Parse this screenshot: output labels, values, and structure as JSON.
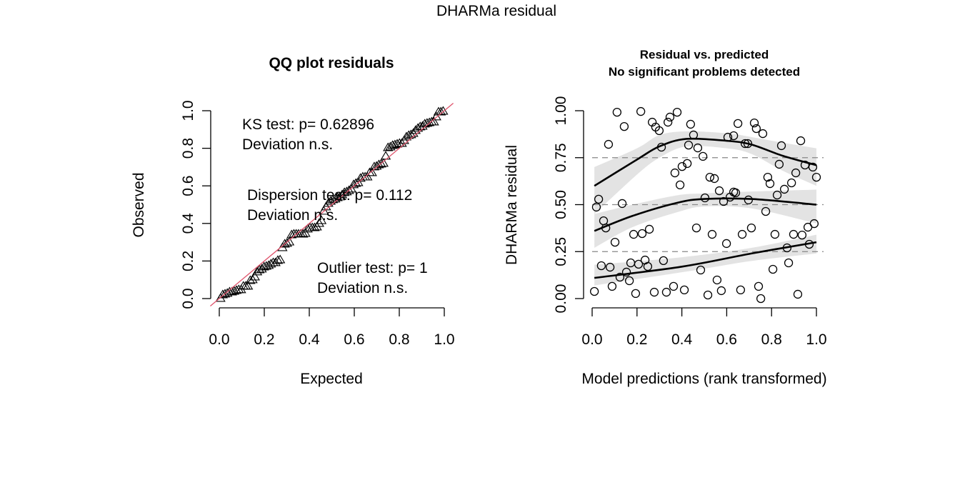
{
  "page_title": "DHARMa residual",
  "chart_data": [
    {
      "type": "scatter",
      "subtype": "qq-uniform",
      "title": "QQ plot residuals",
      "xlabel": "Expected",
      "ylabel": "Observed",
      "xlim": [
        0,
        1
      ],
      "ylim": [
        0,
        1
      ],
      "xticks": [
        "0.0",
        "0.2",
        "0.4",
        "0.6",
        "0.8",
        "1.0"
      ],
      "yticks": [
        "0.0",
        "0.2",
        "0.4",
        "0.6",
        "0.8",
        "1.0"
      ],
      "marker": "triangle-open",
      "reference_line": {
        "from": [
          0,
          0
        ],
        "to": [
          1,
          1
        ],
        "color": "#df536b"
      },
      "annotations": [
        {
          "line1": "KS test: p= 0.62896",
          "line2": "Deviation  n.s."
        },
        {
          "line1": "Dispersion test: p= 0.112",
          "line2": "Deviation  n.s."
        },
        {
          "line1": "Outlier test: p= 1",
          "line2": "Deviation  n.s."
        }
      ],
      "observed_source": "residuals of second panel (sorted)"
    },
    {
      "type": "scatter",
      "title": "Residual vs. predicted",
      "subtitle": "No significant problems detected",
      "xlabel": "Model predictions (rank transformed)",
      "ylabel": "DHARMa residual",
      "xlim": [
        0,
        1
      ],
      "ylim": [
        0,
        1
      ],
      "xticks": [
        "0.0",
        "0.2",
        "0.4",
        "0.6",
        "0.8",
        "1.0"
      ],
      "yticks": [
        "0.00",
        "0.25",
        "0.50",
        "0.75",
        "1.00"
      ],
      "hlines": [
        0.25,
        0.5,
        0.75
      ],
      "marker": "circle-open",
      "points": [
        [
          0.111,
          0.992
        ],
        [
          0.217,
          0.996
        ],
        [
          0.143,
          0.916
        ],
        [
          0.073,
          0.821
        ],
        [
          0.268,
          0.939
        ],
        [
          0.283,
          0.913
        ],
        [
          0.299,
          0.894
        ],
        [
          0.309,
          0.806
        ],
        [
          0.379,
          0.992
        ],
        [
          0.347,
          0.966
        ],
        [
          0.338,
          0.939
        ],
        [
          0.439,
          0.928
        ],
        [
          0.452,
          0.871
        ],
        [
          0.43,
          0.817
        ],
        [
          0.471,
          0.802
        ],
        [
          0.494,
          0.757
        ],
        [
          0.65,
          0.932
        ],
        [
          0.723,
          0.935
        ],
        [
          0.732,
          0.905
        ],
        [
          0.761,
          0.878
        ],
        [
          0.631,
          0.867
        ],
        [
          0.605,
          0.859
        ],
        [
          0.682,
          0.825
        ],
        [
          0.694,
          0.825
        ],
        [
          0.844,
          0.814
        ],
        [
          0.93,
          0.84
        ],
        [
          0.424,
          0.719
        ],
        [
          0.401,
          0.703
        ],
        [
          0.369,
          0.669
        ],
        [
          0.392,
          0.605
        ],
        [
          0.525,
          0.646
        ],
        [
          0.545,
          0.639
        ],
        [
          0.567,
          0.574
        ],
        [
          0.834,
          0.715
        ],
        [
          0.949,
          0.711
        ],
        [
          0.984,
          0.7
        ],
        [
          1.0,
          0.646
        ],
        [
          0.908,
          0.669
        ],
        [
          0.783,
          0.646
        ],
        [
          0.793,
          0.612
        ],
        [
          0.889,
          0.616
        ],
        [
          0.857,
          0.582
        ],
        [
          0.825,
          0.551
        ],
        [
          0.029,
          0.529
        ],
        [
          0.019,
          0.487
        ],
        [
          0.134,
          0.506
        ],
        [
          0.503,
          0.536
        ],
        [
          0.586,
          0.517
        ],
        [
          0.615,
          0.54
        ],
        [
          0.631,
          0.567
        ],
        [
          0.64,
          0.563
        ],
        [
          0.697,
          0.525
        ],
        [
          0.774,
          0.464
        ],
        [
          0.051,
          0.414
        ],
        [
          0.061,
          0.376
        ],
        [
          0.185,
          0.342
        ],
        [
          0.223,
          0.346
        ],
        [
          0.255,
          0.369
        ],
        [
          0.102,
          0.3
        ],
        [
          0.465,
          0.376
        ],
        [
          0.535,
          0.342
        ],
        [
          0.599,
          0.293
        ],
        [
          0.669,
          0.342
        ],
        [
          0.71,
          0.376
        ],
        [
          0.815,
          0.342
        ],
        [
          0.898,
          0.342
        ],
        [
          0.936,
          0.338
        ],
        [
          0.962,
          0.38
        ],
        [
          0.99,
          0.399
        ],
        [
          0.869,
          0.27
        ],
        [
          0.968,
          0.289
        ],
        [
          0.041,
          0.175
        ],
        [
          0.08,
          0.167
        ],
        [
          0.172,
          0.19
        ],
        [
          0.207,
          0.183
        ],
        [
          0.236,
          0.205
        ],
        [
          0.248,
          0.171
        ],
        [
          0.318,
          0.202
        ],
        [
          0.153,
          0.141
        ],
        [
          0.124,
          0.114
        ],
        [
          0.166,
          0.095
        ],
        [
          0.089,
          0.065
        ],
        [
          0.01,
          0.038
        ],
        [
          0.194,
          0.027
        ],
        [
          0.277,
          0.034
        ],
        [
          0.331,
          0.034
        ],
        [
          0.363,
          0.065
        ],
        [
          0.411,
          0.046
        ],
        [
          0.484,
          0.152
        ],
        [
          0.516,
          0.019
        ],
        [
          0.557,
          0.099
        ],
        [
          0.576,
          0.042
        ],
        [
          0.662,
          0.046
        ],
        [
          0.742,
          0.065
        ],
        [
          0.752,
          0.0
        ],
        [
          0.806,
          0.156
        ],
        [
          0.876,
          0.19
        ],
        [
          0.917,
          0.023
        ]
      ],
      "quantile_curves": [
        {
          "name": "q0.75",
          "x": [
            0.01,
            0.2,
            0.3,
            0.42,
            0.6,
            0.71,
            0.85,
            1.0
          ],
          "y": [
            0.6,
            0.74,
            0.81,
            0.85,
            0.84,
            0.82,
            0.76,
            0.71
          ],
          "band_lo": [
            0.45,
            0.66,
            0.75,
            0.81,
            0.8,
            0.77,
            0.68,
            0.6
          ],
          "band_hi": [
            0.7,
            0.8,
            0.87,
            0.89,
            0.88,
            0.86,
            0.83,
            0.8
          ]
        },
        {
          "name": "q0.5",
          "x": [
            0.01,
            0.18,
            0.38,
            0.5,
            0.71,
            1.0
          ],
          "y": [
            0.36,
            0.44,
            0.51,
            0.53,
            0.53,
            0.5
          ],
          "band_lo": [
            0.27,
            0.38,
            0.46,
            0.49,
            0.48,
            0.4
          ],
          "band_hi": [
            0.45,
            0.5,
            0.55,
            0.56,
            0.57,
            0.58
          ]
        },
        {
          "name": "q0.25",
          "x": [
            0.01,
            0.4,
            0.71,
            1.0
          ],
          "y": [
            0.11,
            0.17,
            0.24,
            0.3
          ],
          "band_lo": [
            0.07,
            0.14,
            0.2,
            0.24
          ],
          "band_hi": [
            0.18,
            0.22,
            0.27,
            0.34
          ]
        }
      ]
    }
  ]
}
